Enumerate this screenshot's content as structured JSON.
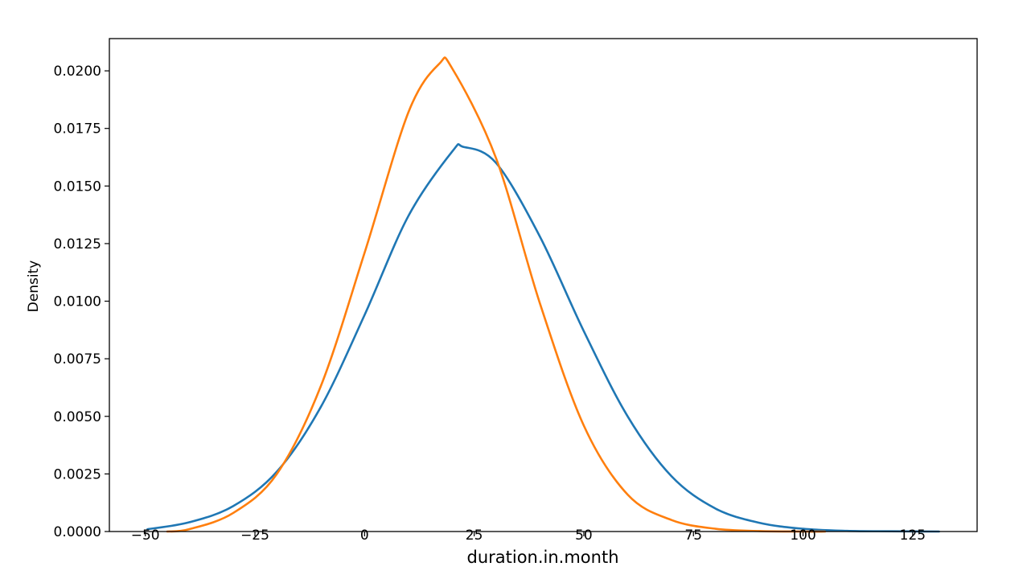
{
  "chart_data": {
    "type": "line",
    "title": "",
    "xlabel": "duration.in.month",
    "ylabel": "Density",
    "xlim": [
      -58.2,
      139.7
    ],
    "ylim": [
      0.0,
      0.0214
    ],
    "xticks": [
      -50,
      -25,
      0,
      25,
      50,
      75,
      100,
      125
    ],
    "xtick_labels": [
      "−50",
      "−25",
      "0",
      "25",
      "50",
      "75",
      "100",
      "125"
    ],
    "yticks": [
      0.0,
      0.0025,
      0.005,
      0.0075,
      0.01,
      0.0125,
      0.015,
      0.0175,
      0.02
    ],
    "ytick_labels": [
      "0.0000",
      "0.0025",
      "0.0050",
      "0.0075",
      "0.0100",
      "0.0125",
      "0.0150",
      "0.0175",
      "0.0200"
    ],
    "grid": false,
    "legend": false,
    "series": [
      {
        "color": "#1f77b4",
        "x": [
          -49.5,
          -40,
          -30,
          -20,
          -10,
          0,
          10,
          20,
          22.5,
          30,
          40,
          50,
          60,
          70,
          80,
          90,
          100,
          110,
          120,
          131
        ],
        "y": [
          0.0001,
          0.0004,
          0.0011,
          0.0026,
          0.0054,
          0.0094,
          0.0137,
          0.0165,
          0.0167,
          0.016,
          0.0128,
          0.0087,
          0.005,
          0.0024,
          0.001,
          0.00038,
          0.00012,
          3e-05,
          1e-05,
          0.0
        ]
      },
      {
        "color": "#ff7f0e",
        "x": [
          -45,
          -40,
          -30,
          -20,
          -10,
          0,
          10,
          17,
          20,
          30,
          40,
          50,
          60,
          70,
          80,
          90,
          100,
          105
        ],
        "y": [
          0.0,
          0.0001,
          0.0008,
          0.0025,
          0.0063,
          0.0121,
          0.0182,
          0.0203,
          0.0201,
          0.0162,
          0.0099,
          0.0046,
          0.0016,
          0.0005,
          0.00012,
          2e-05,
          0.0,
          0.0
        ]
      }
    ]
  }
}
